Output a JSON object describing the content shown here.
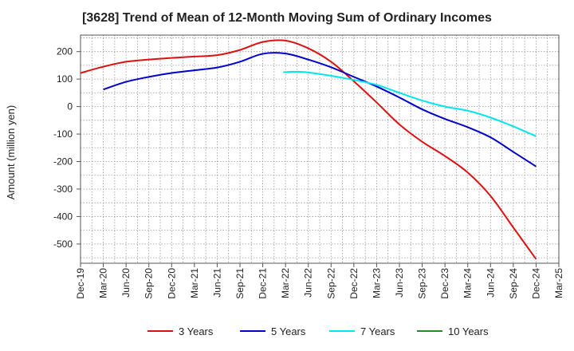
{
  "chart_data": {
    "type": "line",
    "title": "[3628]  Trend of Mean of 12-Month Moving Sum of Ordinary Incomes",
    "xlabel": "",
    "ylabel": "Amount (million yen)",
    "ylim": [
      -570,
      260
    ],
    "yticks": [
      200,
      100,
      0,
      -100,
      -200,
      -300,
      -400,
      -500
    ],
    "x_categories": [
      "Dec-19",
      "Mar-20",
      "Jun-20",
      "Sep-20",
      "Dec-20",
      "Mar-21",
      "Jun-21",
      "Sep-21",
      "Dec-21",
      "Mar-22",
      "Jun-22",
      "Sep-22",
      "Dec-22",
      "Mar-23",
      "Jun-23",
      "Sep-23",
      "Dec-23",
      "Mar-24",
      "Jun-24",
      "Sep-24",
      "Dec-24",
      "Mar-25"
    ],
    "grid": true,
    "legend_position": "bottom",
    "series": [
      {
        "name": "3 Years",
        "color": "#dd1111",
        "points": [
          [
            0,
            122
          ],
          [
            1,
            145
          ],
          [
            2,
            163
          ],
          [
            3,
            171
          ],
          [
            4,
            177
          ],
          [
            5,
            182
          ],
          [
            6,
            187
          ],
          [
            7,
            206
          ],
          [
            8,
            235
          ],
          [
            9,
            240
          ],
          [
            10,
            212
          ],
          [
            11,
            163
          ],
          [
            12,
            92
          ],
          [
            13,
            15
          ],
          [
            14,
            -65
          ],
          [
            15,
            -128
          ],
          [
            16,
            -180
          ],
          [
            17,
            -240
          ],
          [
            18,
            -325
          ],
          [
            19,
            -440
          ],
          [
            20,
            -555
          ]
        ]
      },
      {
        "name": "5 Years",
        "color": "#0000cc",
        "points": [
          [
            1,
            62
          ],
          [
            2,
            90
          ],
          [
            3,
            108
          ],
          [
            4,
            122
          ],
          [
            5,
            132
          ],
          [
            6,
            142
          ],
          [
            7,
            163
          ],
          [
            8,
            192
          ],
          [
            9,
            193
          ],
          [
            10,
            171
          ],
          [
            11,
            143
          ],
          [
            12,
            108
          ],
          [
            13,
            73
          ],
          [
            14,
            33
          ],
          [
            15,
            -10
          ],
          [
            16,
            -45
          ],
          [
            17,
            -75
          ],
          [
            18,
            -112
          ],
          [
            19,
            -165
          ],
          [
            20,
            -218
          ]
        ]
      },
      {
        "name": "7 Years",
        "color": "#00e5ee",
        "points": [
          [
            8.9,
            125
          ],
          [
            9.5,
            127
          ],
          [
            10,
            124
          ],
          [
            11,
            112
          ],
          [
            12,
            97
          ],
          [
            13,
            79
          ],
          [
            14,
            50
          ],
          [
            15,
            22
          ],
          [
            16,
            0
          ],
          [
            17,
            -15
          ],
          [
            18,
            -40
          ],
          [
            19,
            -72
          ],
          [
            20,
            -108
          ]
        ]
      },
      {
        "name": "10 Years",
        "color": "#228b22",
        "points": []
      }
    ]
  }
}
